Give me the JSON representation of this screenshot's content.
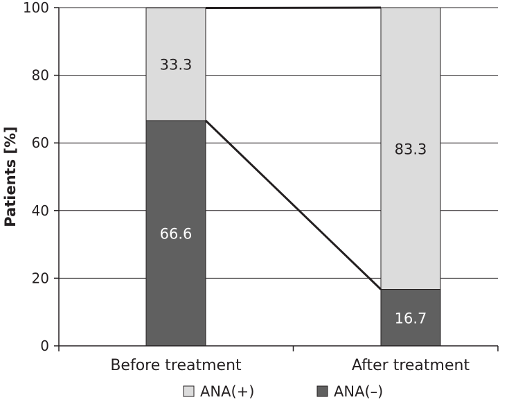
{
  "chart_data": {
    "type": "bar",
    "stacked": true,
    "categories": [
      "Before treatment",
      "After treatment"
    ],
    "series": [
      {
        "name": "ANA(–)",
        "values": [
          66.6,
          16.7
        ],
        "labels": [
          "66.6",
          "16.7"
        ],
        "color": "#606060",
        "label_color": "#ffffff"
      },
      {
        "name": "ANA(+)",
        "values": [
          33.3,
          83.3
        ],
        "labels": [
          "33.3",
          "83.3"
        ],
        "color": "#dcdcdc",
        "label_color": "#231f20"
      }
    ],
    "legend_order": [
      1,
      0
    ],
    "xlabel": "",
    "ylabel": "Patients [%]",
    "ylim": [
      0,
      100
    ],
    "yticks": [
      "0",
      "20",
      "40",
      "60",
      "80",
      "100"
    ],
    "grid": true,
    "connector_lines": true,
    "legend_position": "bottom-center"
  }
}
